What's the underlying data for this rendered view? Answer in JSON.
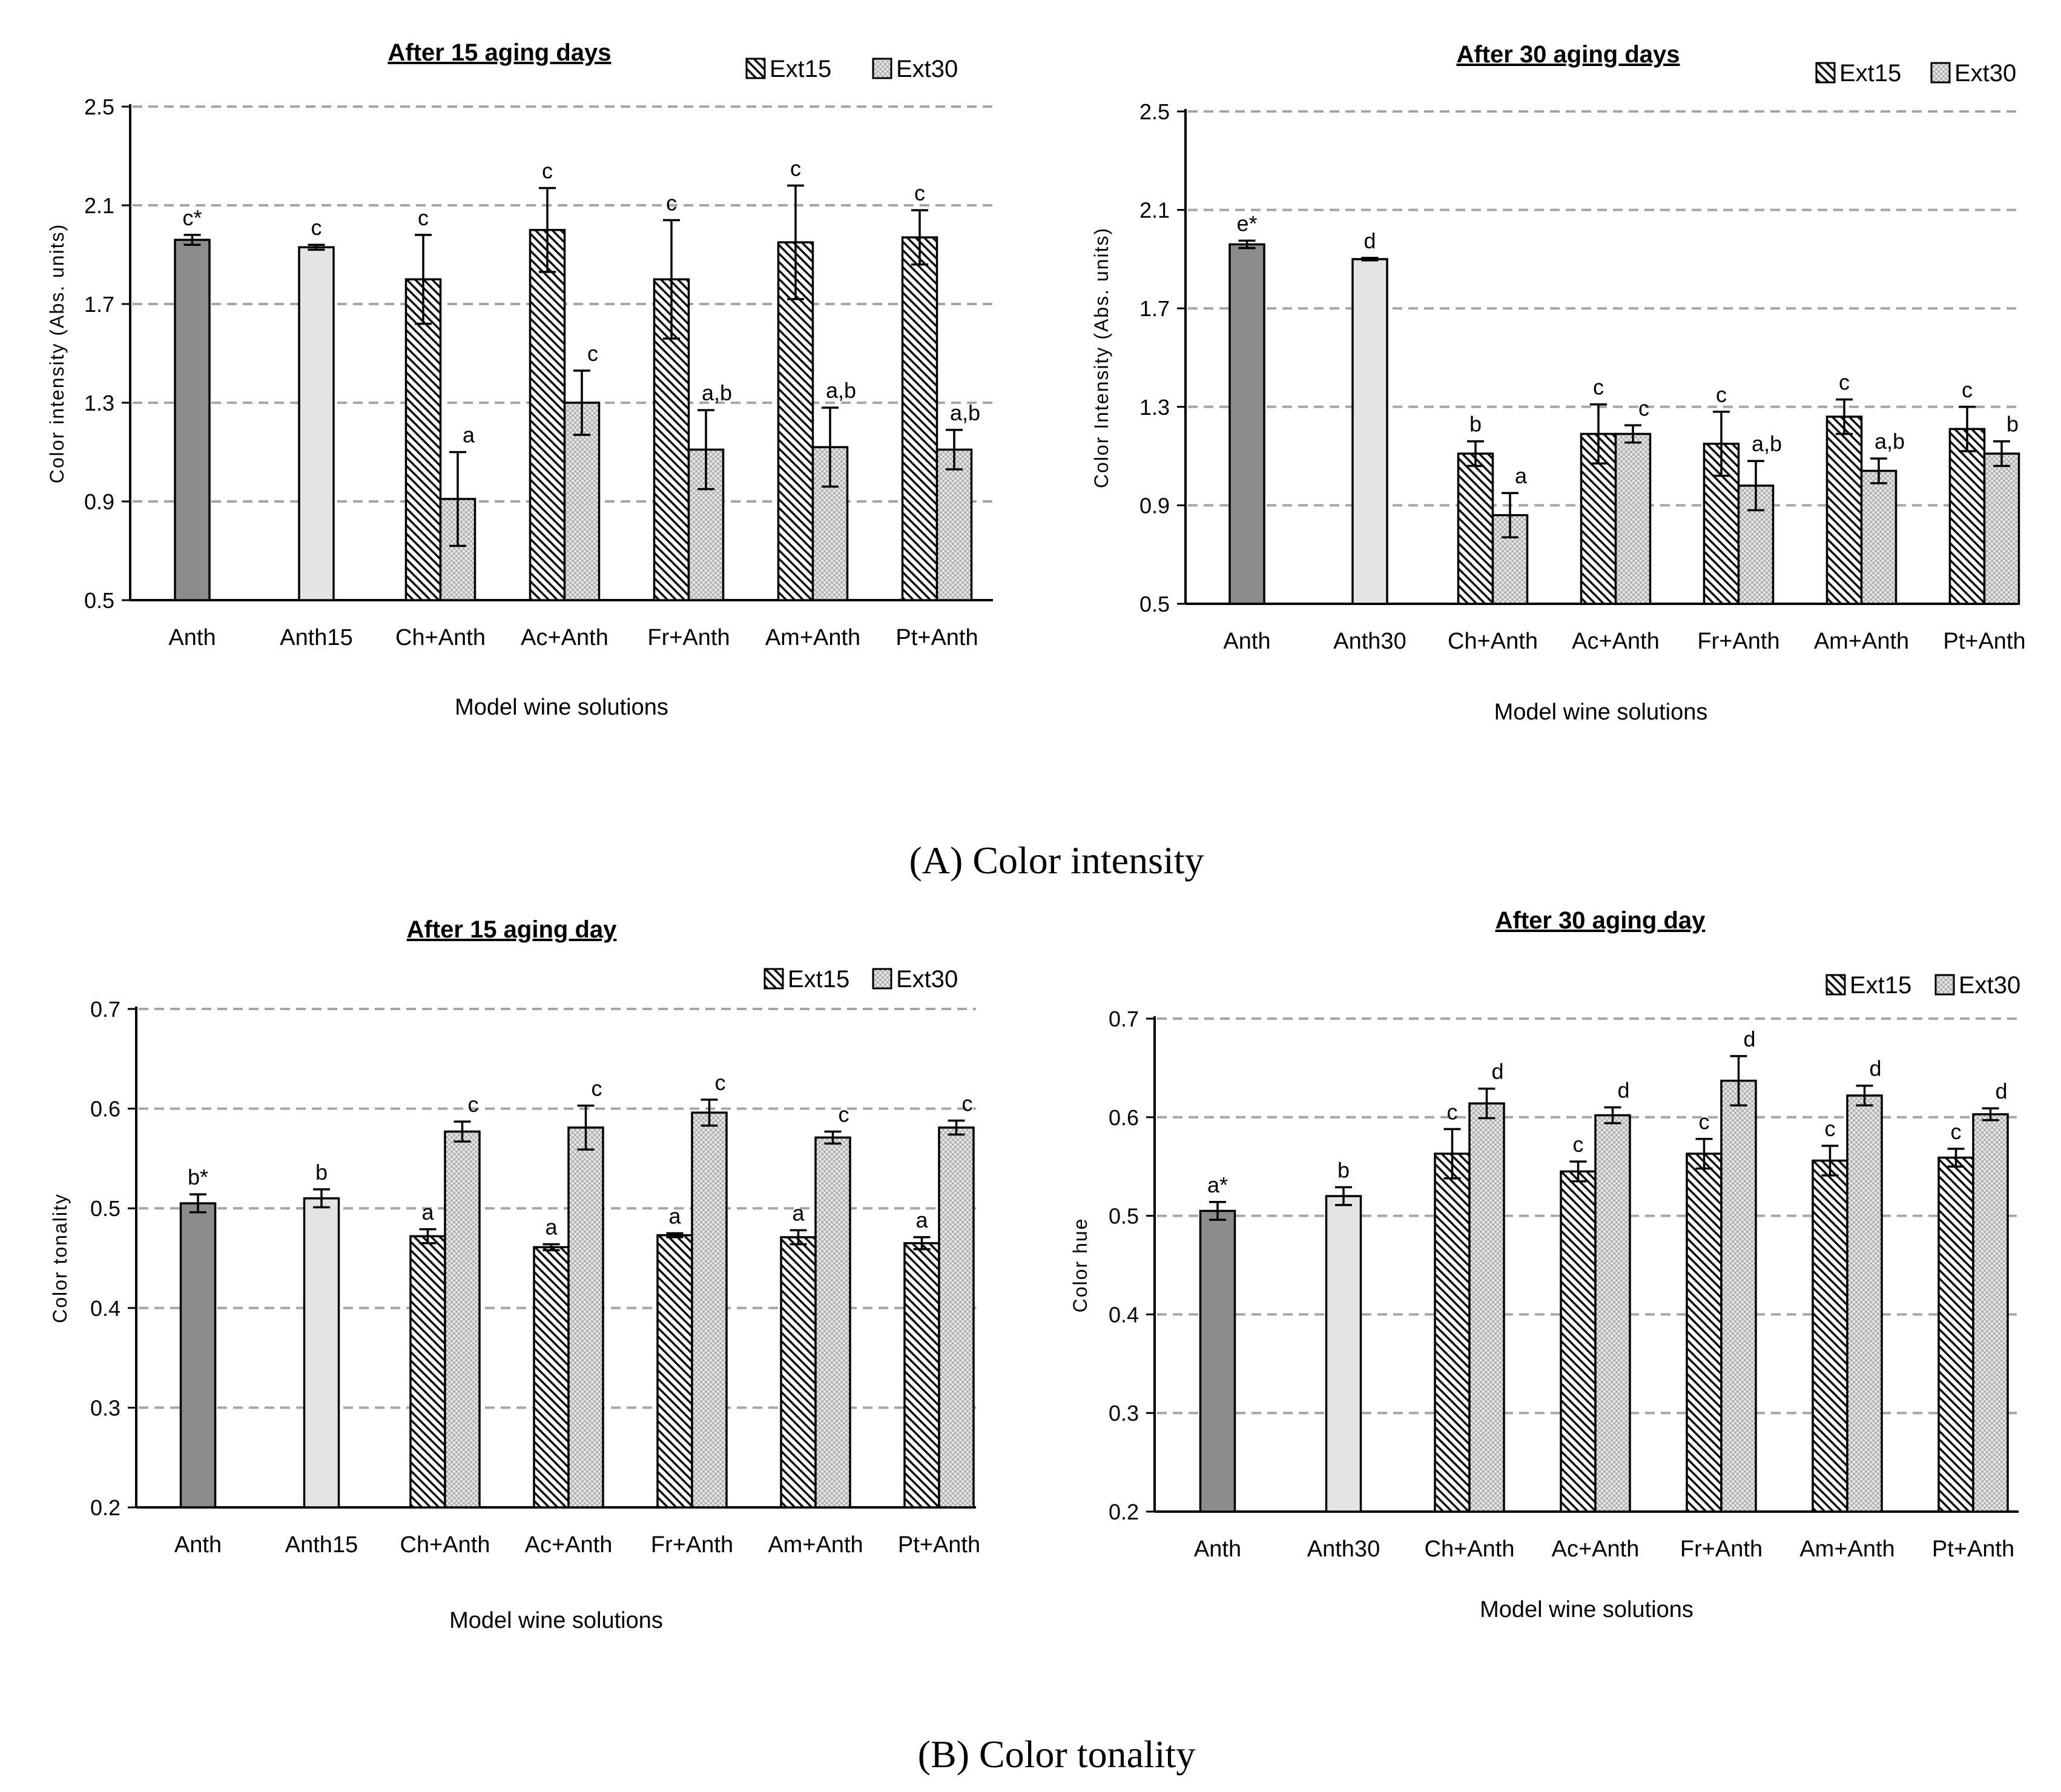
{
  "section_titles": [
    "(A) Color intensity",
    "(B) Color tonality"
  ],
  "chart_data": [
    {
      "type": "bar",
      "title": "After 15 aging days",
      "xlabel": "Model wine solutions",
      "ylabel": "Color intensity (Abs. units)",
      "ylim": [
        0.5,
        2.5
      ],
      "yticks": [
        "0.5",
        "0.9",
        "1.3",
        "1.7",
        "2.1",
        "2.5"
      ],
      "yticks_num": [
        0.5,
        0.9,
        1.3,
        1.7,
        2.1,
        2.5
      ],
      "categories": [
        "Anth",
        "Anth15",
        "Ch+Anth",
        "Ac+Anth",
        "Fr+Anth",
        "Am+Anth",
        "Pt+Anth"
      ],
      "legend": [
        "Ext15",
        "Ext30"
      ],
      "legend_position": "top-right",
      "bars": [
        [
          {
            "style": "dark",
            "value": 1.96,
            "error": 0.02,
            "label": "c*"
          }
        ],
        [
          {
            "style": "light",
            "value": 1.93,
            "error": 0.01,
            "label": "c"
          }
        ],
        [
          {
            "style": "ext15",
            "value": 1.8,
            "error": 0.18,
            "label": "c"
          },
          {
            "style": "ext30",
            "value": 0.91,
            "error": 0.19,
            "label": "a"
          }
        ],
        [
          {
            "style": "ext15",
            "value": 2.0,
            "error": 0.17,
            "label": "c"
          },
          {
            "style": "ext30",
            "value": 1.3,
            "error": 0.13,
            "label": "c"
          }
        ],
        [
          {
            "style": "ext15",
            "value": 1.8,
            "error": 0.24,
            "label": "c"
          },
          {
            "style": "ext30",
            "value": 1.11,
            "error": 0.16,
            "label": "a,b"
          }
        ],
        [
          {
            "style": "ext15",
            "value": 1.95,
            "error": 0.23,
            "label": "c"
          },
          {
            "style": "ext30",
            "value": 1.12,
            "error": 0.16,
            "label": "a,b"
          }
        ],
        [
          {
            "style": "ext15",
            "value": 1.97,
            "error": 0.11,
            "label": "c"
          },
          {
            "style": "ext30",
            "value": 1.11,
            "error": 0.08,
            "label": "a,b"
          }
        ]
      ]
    },
    {
      "type": "bar",
      "title": "After 30 aging days",
      "xlabel": "Model wine solutions",
      "ylabel": "Color Intensity (Abs. units)",
      "ylim": [
        0.5,
        2.5
      ],
      "yticks": [
        "0.5",
        "0.9",
        "1.3",
        "1.7",
        "2.1",
        "2.5"
      ],
      "yticks_num": [
        0.5,
        0.9,
        1.3,
        1.7,
        2.1,
        2.5
      ],
      "categories": [
        "Anth",
        "Anth30",
        "Ch+Anth",
        "Ac+Anth",
        "Fr+Anth",
        "Am+Anth",
        "Pt+Anth"
      ],
      "legend": [
        "Ext15",
        "Ext30"
      ],
      "legend_position": "top-right",
      "bars": [
        [
          {
            "style": "dark",
            "value": 1.96,
            "error": 0.015,
            "label": "e*"
          }
        ],
        [
          {
            "style": "light",
            "value": 1.9,
            "error": 0.005,
            "label": "d"
          }
        ],
        [
          {
            "style": "ext15",
            "value": 1.11,
            "error": 0.05,
            "label": "b"
          },
          {
            "style": "ext30",
            "value": 0.86,
            "error": 0.09,
            "label": "a"
          }
        ],
        [
          {
            "style": "ext15",
            "value": 1.19,
            "error": 0.12,
            "label": "c"
          },
          {
            "style": "ext30",
            "value": 1.19,
            "error": 0.035,
            "label": "c"
          }
        ],
        [
          {
            "style": "ext15",
            "value": 1.15,
            "error": 0.13,
            "label": "c"
          },
          {
            "style": "ext30",
            "value": 0.98,
            "error": 0.1,
            "label": "a,b"
          }
        ],
        [
          {
            "style": "ext15",
            "value": 1.26,
            "error": 0.07,
            "label": "c"
          },
          {
            "style": "ext30",
            "value": 1.04,
            "error": 0.05,
            "label": "a,b"
          }
        ],
        [
          {
            "style": "ext15",
            "value": 1.21,
            "error": 0.09,
            "label": "c"
          },
          {
            "style": "ext30",
            "value": 1.11,
            "error": 0.05,
            "label": "b"
          }
        ]
      ]
    },
    {
      "type": "bar",
      "title": "After 15 aging day",
      "xlabel": "Model wine solutions",
      "ylabel": "Color tonality",
      "ylim": [
        0.2,
        0.7
      ],
      "yticks": [
        "0.2",
        "0.3",
        "0.4",
        "0.5",
        "0.6",
        "0.7"
      ],
      "yticks_num": [
        0.2,
        0.3,
        0.4,
        0.5,
        0.6,
        0.7
      ],
      "categories": [
        "Anth",
        "Anth15",
        "Ch+Anth",
        "Ac+Anth",
        "Fr+Anth",
        "Am+Anth",
        "Pt+Anth"
      ],
      "legend": [
        "Ext15",
        "Ext30"
      ],
      "legend_position": "top-right",
      "bars": [
        [
          {
            "style": "dark",
            "value": 0.505,
            "error": 0.009,
            "label": "b*"
          }
        ],
        [
          {
            "style": "light",
            "value": 0.51,
            "error": 0.009,
            "label": "b"
          }
        ],
        [
          {
            "style": "ext15",
            "value": 0.472,
            "error": 0.007,
            "label": "a"
          },
          {
            "style": "ext30",
            "value": 0.577,
            "error": 0.01,
            "label": "c"
          }
        ],
        [
          {
            "style": "ext15",
            "value": 0.461,
            "error": 0.003,
            "label": "a"
          },
          {
            "style": "ext30",
            "value": 0.581,
            "error": 0.022,
            "label": "c"
          }
        ],
        [
          {
            "style": "ext15",
            "value": 0.473,
            "error": 0.002,
            "label": "a"
          },
          {
            "style": "ext30",
            "value": 0.596,
            "error": 0.013,
            "label": "c"
          }
        ],
        [
          {
            "style": "ext15",
            "value": 0.471,
            "error": 0.007,
            "label": "a"
          },
          {
            "style": "ext30",
            "value": 0.571,
            "error": 0.006,
            "label": "c"
          }
        ],
        [
          {
            "style": "ext15",
            "value": 0.465,
            "error": 0.006,
            "label": "a"
          },
          {
            "style": "ext30",
            "value": 0.581,
            "error": 0.007,
            "label": "c"
          }
        ]
      ]
    },
    {
      "type": "bar",
      "title": "After 30 aging day",
      "xlabel": "Model wine solutions",
      "ylabel": "Color hue",
      "ylim": [
        0.2,
        0.7
      ],
      "yticks": [
        "0.2",
        "0.3",
        "0.4",
        "0.5",
        "0.6",
        "0.7"
      ],
      "yticks_num": [
        0.2,
        0.3,
        0.4,
        0.5,
        0.6,
        0.7
      ],
      "categories": [
        "Anth",
        "Anth30",
        "Ch+Anth",
        "Ac+Anth",
        "Fr+Anth",
        "Am+Anth",
        "Pt+Anth"
      ],
      "legend": [
        "Ext15",
        "Ext30"
      ],
      "legend_position": "top-right",
      "bars": [
        [
          {
            "style": "dark",
            "value": 0.505,
            "error": 0.009,
            "label": "a*"
          }
        ],
        [
          {
            "style": "light",
            "value": 0.52,
            "error": 0.009,
            "label": "b"
          }
        ],
        [
          {
            "style": "ext15",
            "value": 0.563,
            "error": 0.025,
            "label": "c"
          },
          {
            "style": "ext30",
            "value": 0.614,
            "error": 0.015,
            "label": "d"
          }
        ],
        [
          {
            "style": "ext15",
            "value": 0.545,
            "error": 0.01,
            "label": "c"
          },
          {
            "style": "ext30",
            "value": 0.602,
            "error": 0.008,
            "label": "d"
          }
        ],
        [
          {
            "style": "ext15",
            "value": 0.563,
            "error": 0.015,
            "label": "c"
          },
          {
            "style": "ext30",
            "value": 0.637,
            "error": 0.025,
            "label": "d"
          }
        ],
        [
          {
            "style": "ext15",
            "value": 0.556,
            "error": 0.015,
            "label": "c"
          },
          {
            "style": "ext30",
            "value": 0.622,
            "error": 0.01,
            "label": "d"
          }
        ],
        [
          {
            "style": "ext15",
            "value": 0.559,
            "error": 0.009,
            "label": "c"
          },
          {
            "style": "ext30",
            "value": 0.603,
            "error": 0.006,
            "label": "d"
          }
        ]
      ]
    }
  ]
}
